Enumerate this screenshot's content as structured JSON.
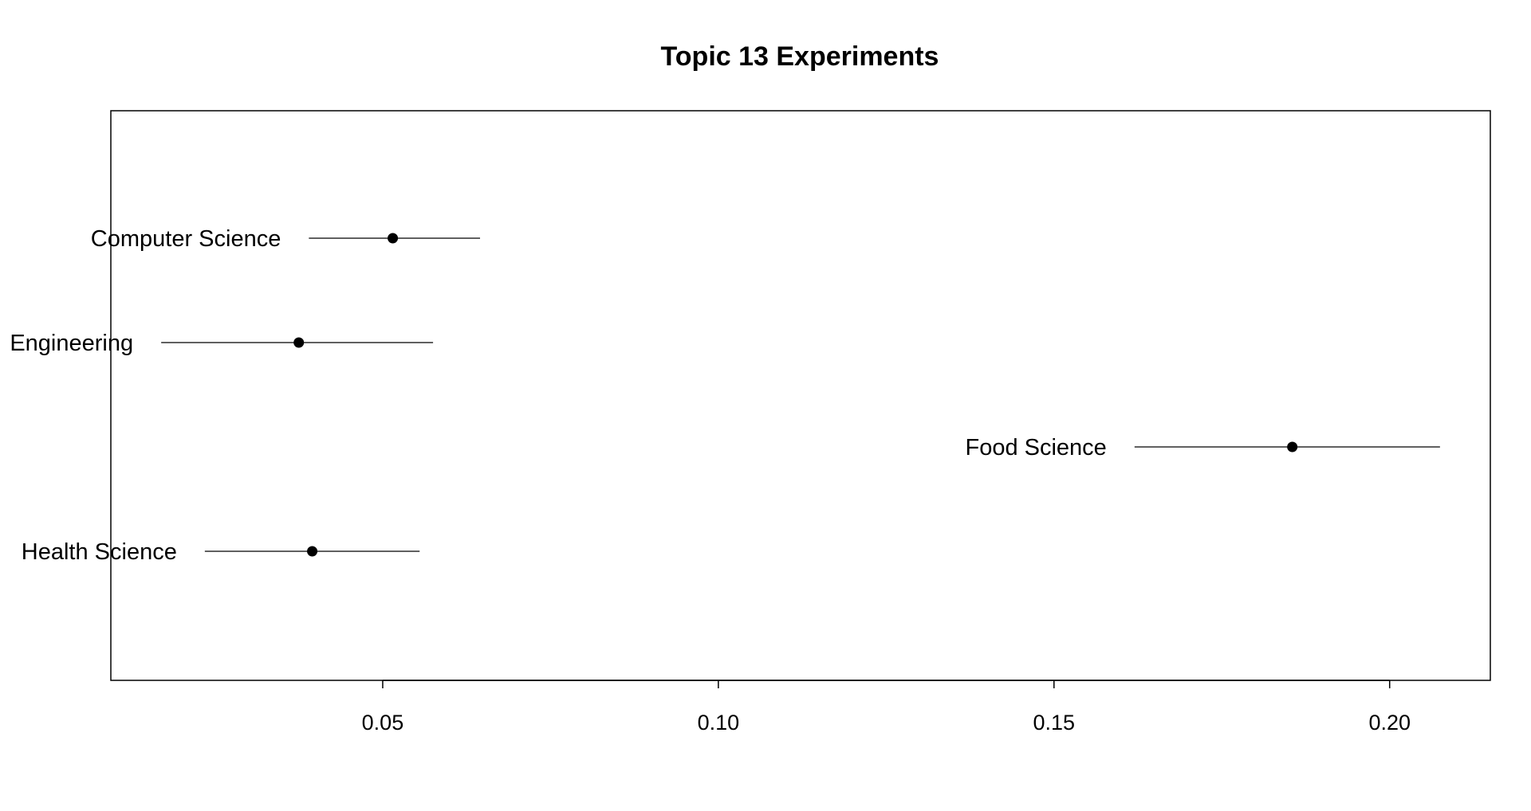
{
  "chart_data": {
    "type": "scatter",
    "title": "Topic 13 Experiments",
    "xlabel": "",
    "ylabel": "",
    "xlim": [
      0.0095,
      0.215
    ],
    "grid": false,
    "legend": "none",
    "x_ticks": [
      0.05,
      0.1,
      0.15,
      0.2
    ],
    "x_tick_labels": [
      "0.05",
      "0.10",
      "0.15",
      "0.20"
    ],
    "points": [
      {
        "label": "Computer Science",
        "estimate": 0.0515,
        "lower": 0.039,
        "upper": 0.0645
      },
      {
        "label": "Engineering",
        "estimate": 0.0375,
        "lower": 0.017,
        "upper": 0.0575
      },
      {
        "label": "Food Science",
        "estimate": 0.1855,
        "lower": 0.162,
        "upper": 0.2075
      },
      {
        "label": "Health Science",
        "estimate": 0.0395,
        "lower": 0.0235,
        "upper": 0.0555
      }
    ],
    "colors": {
      "point": "#000000",
      "line": "#000000",
      "frame": "#000000"
    }
  }
}
